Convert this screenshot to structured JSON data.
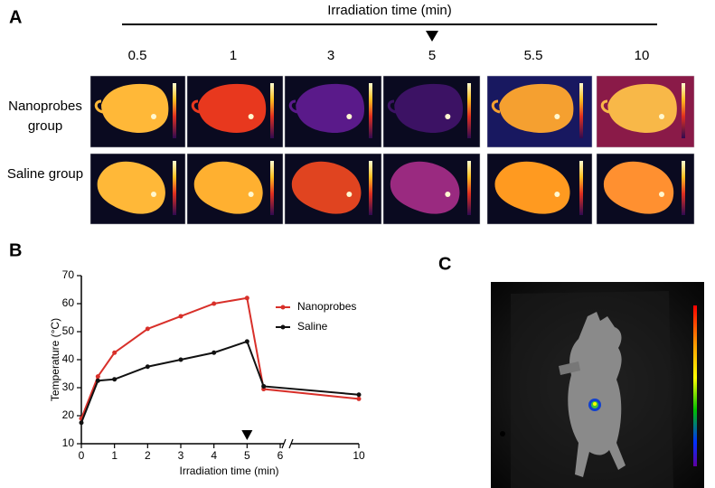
{
  "panel_a": {
    "label": "A",
    "title": "Irradiation time (min)",
    "times": [
      0.5,
      1,
      3,
      5,
      5.5,
      10
    ],
    "groups": [
      "Nanoprobes group",
      "Saline group"
    ]
  },
  "chart_data": {
    "label": "B",
    "type": "line",
    "xlabel": "Irradiation time (min)",
    "ylabel": "Temperature (°C)",
    "x": [
      0,
      0.5,
      1,
      2,
      3,
      4,
      5,
      5.5,
      10
    ],
    "series": [
      {
        "name": "Nanoprobes",
        "color": "#d8302a",
        "values": [
          19,
          34,
          42.5,
          51,
          55.5,
          60,
          62,
          29.5,
          26
        ]
      },
      {
        "name": "Saline",
        "color": "#111111",
        "values": [
          17.5,
          32.5,
          33,
          37.5,
          40,
          42.5,
          46.5,
          30.5,
          27.5
        ]
      }
    ],
    "xlim": [
      0,
      10
    ],
    "xticks": [
      0,
      1,
      2,
      3,
      4,
      5,
      6,
      10
    ],
    "ylim": [
      10,
      70
    ],
    "yticks": [
      10,
      20,
      30,
      40,
      50,
      60,
      70
    ],
    "legend": "upper right"
  },
  "panel_c": {
    "label": "C"
  }
}
